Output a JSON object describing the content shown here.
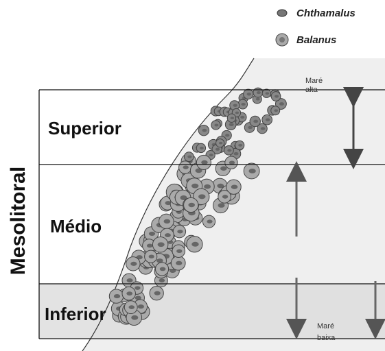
{
  "legend": [
    {
      "label": "Chthamalus"
    },
    {
      "label": "Balanus"
    }
  ],
  "zones": [
    {
      "label": "Superior"
    },
    {
      "label": "Médio"
    },
    {
      "label": "Inferior"
    }
  ],
  "side_label": "Mesolitoral",
  "tide_high": [
    "Maré",
    "alta"
  ],
  "tide_low": [
    "Maré",
    "baixa"
  ]
}
